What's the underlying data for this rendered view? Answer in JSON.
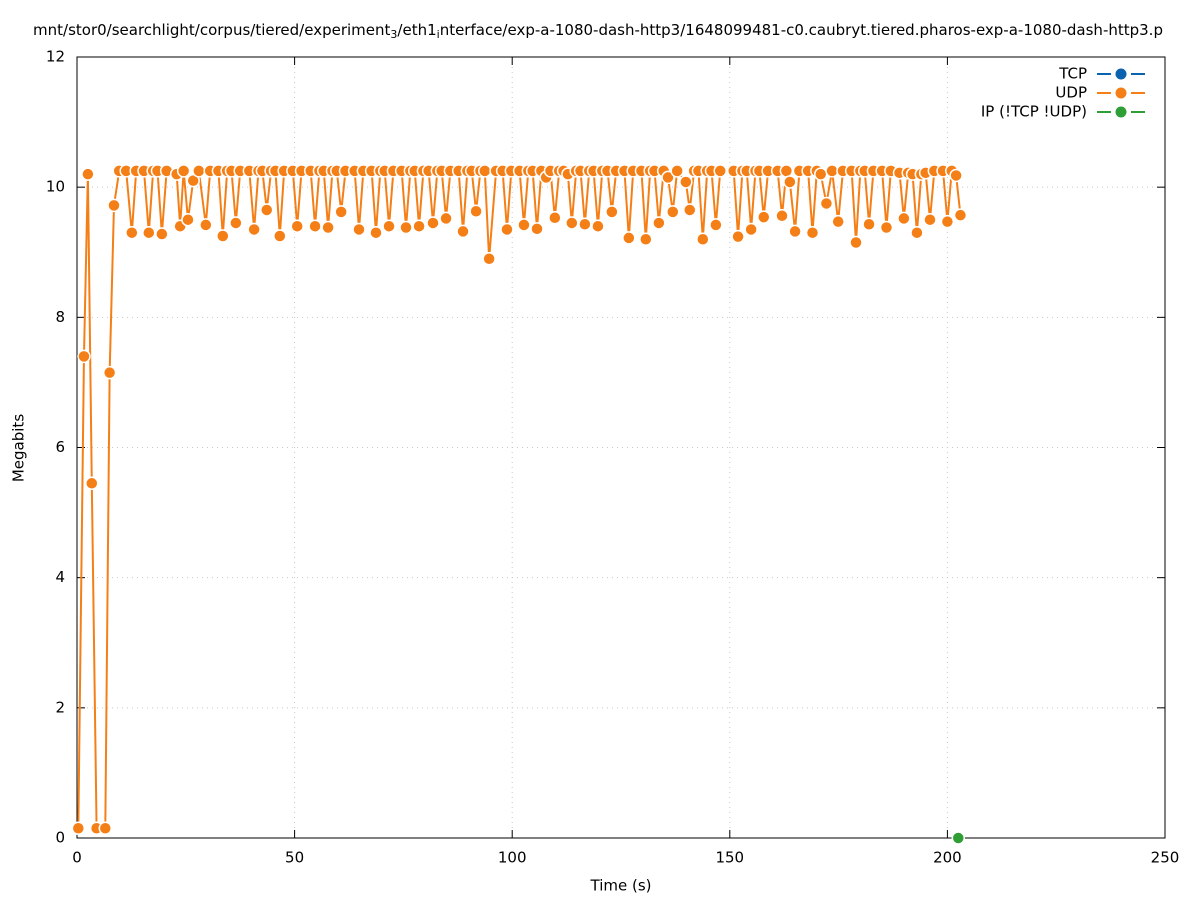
{
  "chart_data": {
    "type": "line",
    "title": [
      "mnt/stor0/searchlight/corpus/tiered/experiment",
      "3",
      "/eth1",
      "i",
      "nterface/exp-a-1080-dash-http3/1648099481-c0.caubryt.tiered.pharos-exp-a-1080-dash-http3.p"
    ],
    "xlabel": "Time (s)",
    "ylabel": "Megabits",
    "xlim": [
      0,
      250
    ],
    "xticks": [
      0,
      50,
      100,
      150,
      200,
      250
    ],
    "ylim": [
      0,
      12
    ],
    "yticks": [
      0,
      2,
      4,
      6,
      8,
      10,
      12
    ],
    "grid": true,
    "legend": "top-right",
    "series": [
      {
        "name": "TCP",
        "color": "#0b63b0",
        "x": [],
        "values": []
      },
      {
        "name": "UDP",
        "color": "#f57f17",
        "x": [
          0.3,
          1.6,
          2.5,
          3.4,
          4.5,
          6.5,
          7.5,
          8.5,
          9.7,
          11.3,
          12.6,
          13.6,
          15.4,
          16.5,
          17.5,
          18.5,
          19.5,
          20.6,
          22.9,
          23.7,
          24.5,
          25.5,
          26.7,
          28.0,
          29.6,
          30.6,
          32.5,
          33.5,
          34.5,
          35.5,
          36.5,
          37.5,
          39.6,
          40.7,
          41.7,
          42.6,
          43.6,
          44.6,
          45.6,
          46.6,
          47.6,
          49.6,
          50.6,
          51.6,
          53.7,
          54.7,
          55.7,
          56.7,
          57.7,
          58.7,
          59.7,
          60.7,
          61.7,
          63.8,
          64.8,
          65.8,
          67.7,
          68.7,
          69.7,
          70.7,
          71.7,
          72.7,
          74.6,
          75.6,
          76.6,
          77.6,
          78.6,
          79.6,
          80.8,
          81.8,
          82.8,
          83.8,
          84.8,
          85.8,
          87.7,
          88.7,
          89.7,
          90.7,
          91.7,
          92.7,
          93.7,
          94.7,
          96.3,
          97.8,
          98.8,
          99.8,
          101.7,
          102.7,
          103.7,
          104.7,
          105.7,
          106.7,
          107.8,
          108.8,
          109.8,
          110.8,
          111.8,
          112.8,
          113.7,
          114.7,
          115.7,
          116.7,
          117.7,
          118.7,
          119.7,
          120.7,
          121.9,
          122.9,
          123.9,
          125.8,
          126.8,
          127.8,
          129.7,
          130.7,
          131.7,
          132.7,
          133.7,
          134.8,
          135.8,
          136.9,
          137.9,
          139.9,
          140.8,
          141.8,
          142.8,
          143.8,
          144.8,
          145.8,
          146.8,
          147.8,
          150.9,
          151.9,
          152.9,
          153.9,
          154.9,
          155.9,
          156.8,
          157.8,
          158.8,
          161,
          162,
          163,
          163.8,
          165,
          166,
          168,
          169,
          170,
          170.9,
          172.2,
          173.5,
          174.9,
          176,
          178,
          179,
          180,
          181,
          182,
          183,
          185,
          186,
          187,
          189,
          190,
          191,
          192,
          193,
          194,
          195,
          196,
          197,
          199,
          200,
          201,
          202,
          203
        ],
        "values": [
          0.15,
          7.4,
          10.2,
          5.45,
          0.15,
          0.15,
          7.15,
          9.72,
          10.25,
          10.25,
          9.3,
          10.25,
          10.25,
          9.3,
          10.25,
          10.25,
          9.28,
          10.25,
          10.2,
          9.4,
          10.25,
          9.5,
          10.1,
          10.25,
          9.42,
          10.25,
          10.25,
          9.25,
          10.25,
          10.25,
          9.45,
          10.25,
          10.25,
          9.35,
          10.25,
          10.25,
          9.65,
          10.25,
          10.25,
          9.25,
          10.25,
          10.25,
          9.4,
          10.25,
          10.25,
          9.4,
          10.25,
          10.25,
          9.38,
          10.25,
          10.25,
          9.62,
          10.25,
          10.25,
          9.35,
          10.25,
          10.25,
          9.3,
          10.25,
          10.25,
          9.4,
          10.25,
          10.25,
          9.38,
          10.25,
          10.25,
          9.4,
          10.25,
          10.25,
          9.45,
          10.25,
          10.25,
          9.52,
          10.25,
          10.25,
          9.32,
          10.25,
          10.25,
          9.63,
          10.25,
          10.25,
          8.9,
          10.25,
          10.25,
          9.35,
          10.25,
          10.25,
          9.42,
          10.25,
          10.25,
          9.36,
          10.25,
          10.15,
          10.25,
          9.53,
          10.25,
          10.25,
          10.2,
          9.45,
          10.25,
          10.25,
          9.43,
          10.25,
          10.25,
          9.4,
          10.25,
          10.25,
          9.62,
          10.25,
          10.25,
          9.22,
          10.25,
          10.25,
          9.2,
          10.25,
          10.25,
          9.45,
          10.25,
          10.15,
          9.62,
          10.25,
          10.08,
          9.65,
          10.25,
          10.25,
          9.2,
          10.25,
          10.25,
          9.42,
          10.25,
          10.25,
          9.24,
          10.25,
          10.25,
          9.35,
          10.25,
          10.25,
          9.54,
          10.25,
          10.25,
          9.56,
          10.25,
          10.08,
          9.32,
          10.25,
          10.25,
          9.3,
          10.25,
          10.2,
          9.75,
          10.25,
          9.47,
          10.25,
          10.25,
          9.15,
          10.25,
          10.25,
          9.43,
          10.25,
          10.25,
          9.38,
          10.25,
          10.22,
          9.52,
          10.22,
          10.2,
          9.3,
          10.2,
          10.22,
          9.5,
          10.25,
          10.25,
          9.47,
          10.25,
          10.18,
          9.57
        ]
      },
      {
        "name": "IP (!TCP  !UDP)",
        "color": "#2e9e35",
        "x": [
          202.5
        ],
        "values": [
          0
        ]
      }
    ]
  }
}
